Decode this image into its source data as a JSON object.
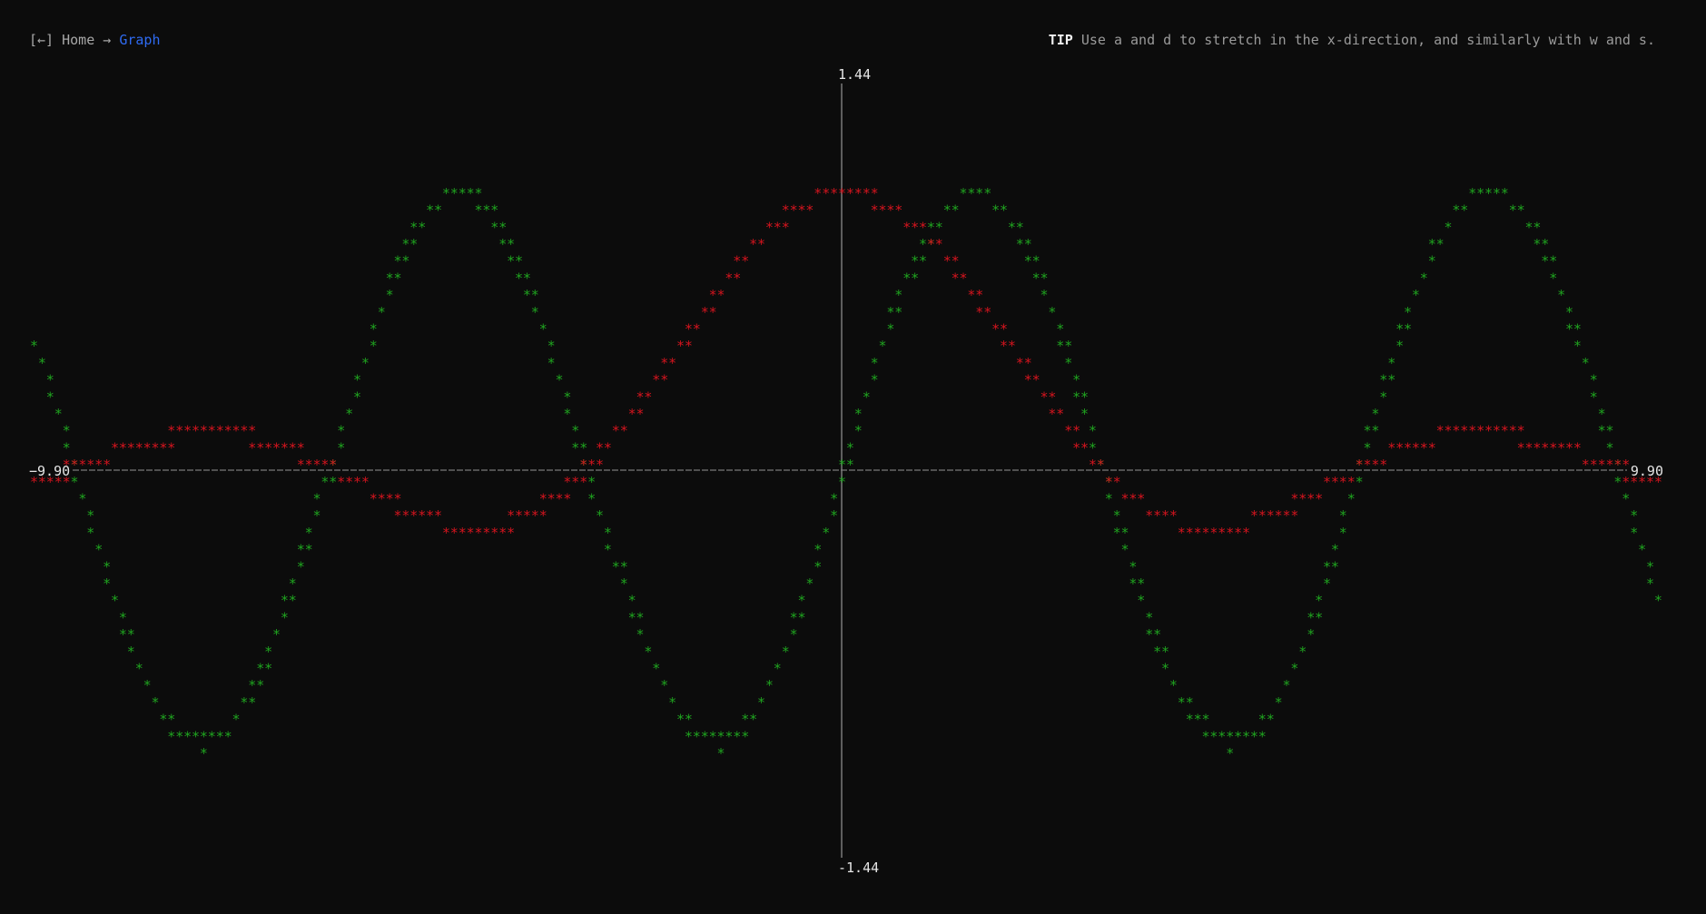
{
  "breadcrumb": {
    "back_label": "[←]",
    "home_label": "Home",
    "separator": "→",
    "current_label": "Graph"
  },
  "tip": {
    "label": "TIP",
    "text": "Use a and d to stretch in the x-direction, and similarly with w and s."
  },
  "graph": {
    "glyph": "*",
    "x_min_label": "−9.90",
    "x_max_label": "9.90",
    "y_max_label": "1.44",
    "y_min_label": "-1.44",
    "x_range": [
      -9.9,
      9.9
    ],
    "y_range": [
      -1.44,
      1.44
    ],
    "colors": {
      "series_green": "#1fa31f",
      "series_red": "#d4141e",
      "axis": "#7a7a7a",
      "labels": "#e6e6e6"
    },
    "series": [
      {
        "color_key": "series_green",
        "function": "sin(x)",
        "sample_x_step": 0.05
      },
      {
        "color_key": "series_red",
        "function": "sin(x)/x",
        "sample_x_step": 0.05
      }
    ]
  }
}
